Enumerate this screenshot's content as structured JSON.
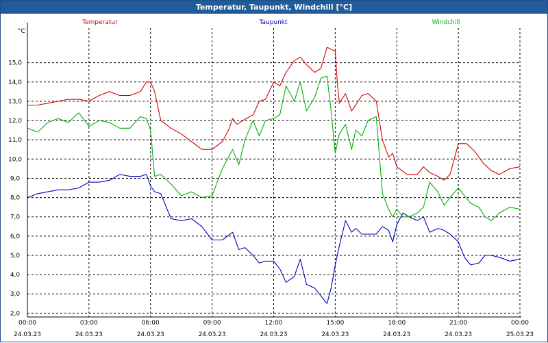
{
  "window": {
    "title": "Temperatur, Taupunkt, Windchill [°C]"
  },
  "colors": {
    "temperatur": "#d00000",
    "taupunkt": "#0000c0",
    "windchill": "#00b000",
    "grid": "#000000"
  },
  "chart_data": {
    "type": "line",
    "title": "Temperatur, Taupunkt, Windchill [°C]",
    "ylabel": "°C",
    "ylim": [
      1.8,
      16.8
    ],
    "xlim": [
      0,
      24
    ],
    "grid": true,
    "yticks": [
      2,
      3,
      4,
      5,
      6,
      7,
      8,
      9,
      10,
      11,
      12,
      13,
      14,
      15
    ],
    "ytick_labels": [
      "2,0",
      "3,0",
      "4,0",
      "5,0",
      "6,0",
      "7,0",
      "8,0",
      "9,0",
      "10,0",
      "11,0",
      "12,0",
      "13,0",
      "14,0",
      "15,0"
    ],
    "xticks": [
      {
        "h": 0,
        "time": "00:00",
        "date": "24.03.23"
      },
      {
        "h": 3,
        "time": "03:00",
        "date": "24.03.23"
      },
      {
        "h": 6,
        "time": "06:00",
        "date": "24.03.23"
      },
      {
        "h": 9,
        "time": "09:00",
        "date": "24.03.23"
      },
      {
        "h": 12,
        "time": "12:00",
        "date": "24.03.23"
      },
      {
        "h": 15,
        "time": "15:00",
        "date": "24.03.23"
      },
      {
        "h": 18,
        "time": "18:00",
        "date": "24.03.23"
      },
      {
        "h": 21,
        "time": "21:00",
        "date": "24.03.23"
      },
      {
        "h": 24,
        "time": "00:00",
        "date": "25.03.23"
      }
    ],
    "series": [
      {
        "name": "Temperatur",
        "key": "temperatur",
        "x": [
          0,
          0.5,
          1,
          1.5,
          2,
          2.5,
          3,
          3.5,
          4,
          4.5,
          5,
          5.5,
          5.8,
          6,
          6.2,
          6.5,
          7,
          7.5,
          8,
          8.5,
          9,
          9.5,
          9.8,
          10,
          10.2,
          10.5,
          11,
          11.3,
          11.6,
          12,
          12.3,
          12.6,
          13,
          13.3,
          13.6,
          14,
          14.3,
          14.6,
          15,
          15.1,
          15.2,
          15.5,
          15.8,
          16,
          16.3,
          16.6,
          17,
          17.3,
          17.6,
          17.8,
          18,
          18.5,
          19,
          19.3,
          19.6,
          20,
          20.3,
          20.6,
          21,
          21.4,
          21.8,
          22.2,
          22.6,
          23,
          23.5,
          24
        ],
        "y": [
          12.8,
          12.8,
          12.9,
          13,
          13.1,
          13.1,
          13,
          13.3,
          13.5,
          13.3,
          13.3,
          13.5,
          14,
          14,
          13.5,
          12,
          11.6,
          11.3,
          10.9,
          10.5,
          10.5,
          10.9,
          11.5,
          12.1,
          11.8,
          12,
          12.3,
          13,
          13.1,
          14,
          13.8,
          14.5,
          15.1,
          15.3,
          14.9,
          14.5,
          14.7,
          15.8,
          15.6,
          14,
          12.9,
          13.4,
          12.5,
          12.8,
          13.3,
          13.4,
          13,
          11,
          10.1,
          10.3,
          9.6,
          9.2,
          9.2,
          9.6,
          9.3,
          9.1,
          8.9,
          9.2,
          10.8,
          10.8,
          10.4,
          9.8,
          9.4,
          9.2,
          9.5,
          9.6
        ]
      },
      {
        "name": "Taupunkt",
        "key": "taupunkt",
        "x": [
          0,
          0.5,
          1,
          1.5,
          2,
          2.5,
          3,
          3.5,
          4,
          4.5,
          5,
          5.5,
          5.8,
          6,
          6.2,
          6.5,
          7,
          7.5,
          8,
          8.5,
          9,
          9.5,
          10,
          10.3,
          10.6,
          11,
          11.3,
          11.6,
          12,
          12.3,
          12.6,
          13,
          13.3,
          13.6,
          14,
          14.3,
          14.6,
          14.8,
          15,
          15.2,
          15.5,
          15.8,
          16,
          16.3,
          16.6,
          17,
          17.3,
          17.6,
          17.8,
          18,
          18.3,
          18.6,
          19,
          19.3,
          19.6,
          20,
          20.3,
          20.6,
          21,
          21.3,
          21.6,
          22,
          22.3,
          22.6,
          23,
          23.5,
          24
        ],
        "y": [
          8,
          8.2,
          8.3,
          8.4,
          8.4,
          8.5,
          8.8,
          8.8,
          8.9,
          9.2,
          9.1,
          9.1,
          9.2,
          8.6,
          8.3,
          8.2,
          6.9,
          6.8,
          6.9,
          6.5,
          5.8,
          5.8,
          6.2,
          5.3,
          5.4,
          5,
          4.6,
          4.7,
          4.7,
          4.3,
          3.6,
          3.9,
          4.8,
          3.5,
          3.3,
          2.9,
          2.5,
          3.3,
          4.5,
          5.5,
          6.8,
          6.2,
          6.4,
          6.1,
          6.1,
          6.1,
          6.5,
          6.3,
          5.7,
          6.6,
          7.2,
          7,
          6.8,
          7,
          6.2,
          6.4,
          6.3,
          6.1,
          5.7,
          4.9,
          4.5,
          4.6,
          5,
          5,
          4.9,
          4.7,
          4.8
        ]
      },
      {
        "name": "Windchill",
        "key": "windchill",
        "x": [
          0,
          0.5,
          1,
          1.5,
          2,
          2.5,
          3,
          3.5,
          4,
          4.5,
          5,
          5.5,
          5.8,
          6,
          6.2,
          6.5,
          7,
          7.5,
          8,
          8.5,
          9,
          9.5,
          10,
          10.3,
          10.6,
          11,
          11.3,
          11.6,
          12,
          12.3,
          12.6,
          13,
          13.3,
          13.6,
          14,
          14.3,
          14.6,
          14.8,
          15,
          15.2,
          15.5,
          15.8,
          16,
          16.3,
          16.6,
          17,
          17.3,
          17.6,
          17.8,
          18,
          18.3,
          18.6,
          19,
          19.3,
          19.6,
          20,
          20.3,
          20.6,
          21,
          21.3,
          21.6,
          22,
          22.3,
          22.6,
          23,
          23.5,
          24
        ],
        "y": [
          11.6,
          11.4,
          11.9,
          12.1,
          11.9,
          12.4,
          11.7,
          12,
          11.9,
          11.6,
          11.6,
          12.2,
          12.1,
          11.5,
          9.1,
          9.2,
          8.7,
          8.1,
          8.3,
          8,
          8.1,
          9.5,
          10.5,
          9.7,
          11,
          12,
          11.2,
          12,
          12.1,
          12.3,
          13.8,
          13,
          14,
          12.5,
          13.2,
          14.2,
          14.3,
          12.5,
          10.3,
          11.3,
          11.8,
          10.5,
          11.5,
          11.2,
          12,
          12.2,
          8.2,
          7.4,
          7,
          7.4,
          7,
          7,
          7.2,
          7.5,
          8.8,
          8.3,
          7.6,
          8,
          8.5,
          8.1,
          7.7,
          7.5,
          7,
          6.8,
          7.2,
          7.5,
          7.4
        ]
      }
    ]
  }
}
